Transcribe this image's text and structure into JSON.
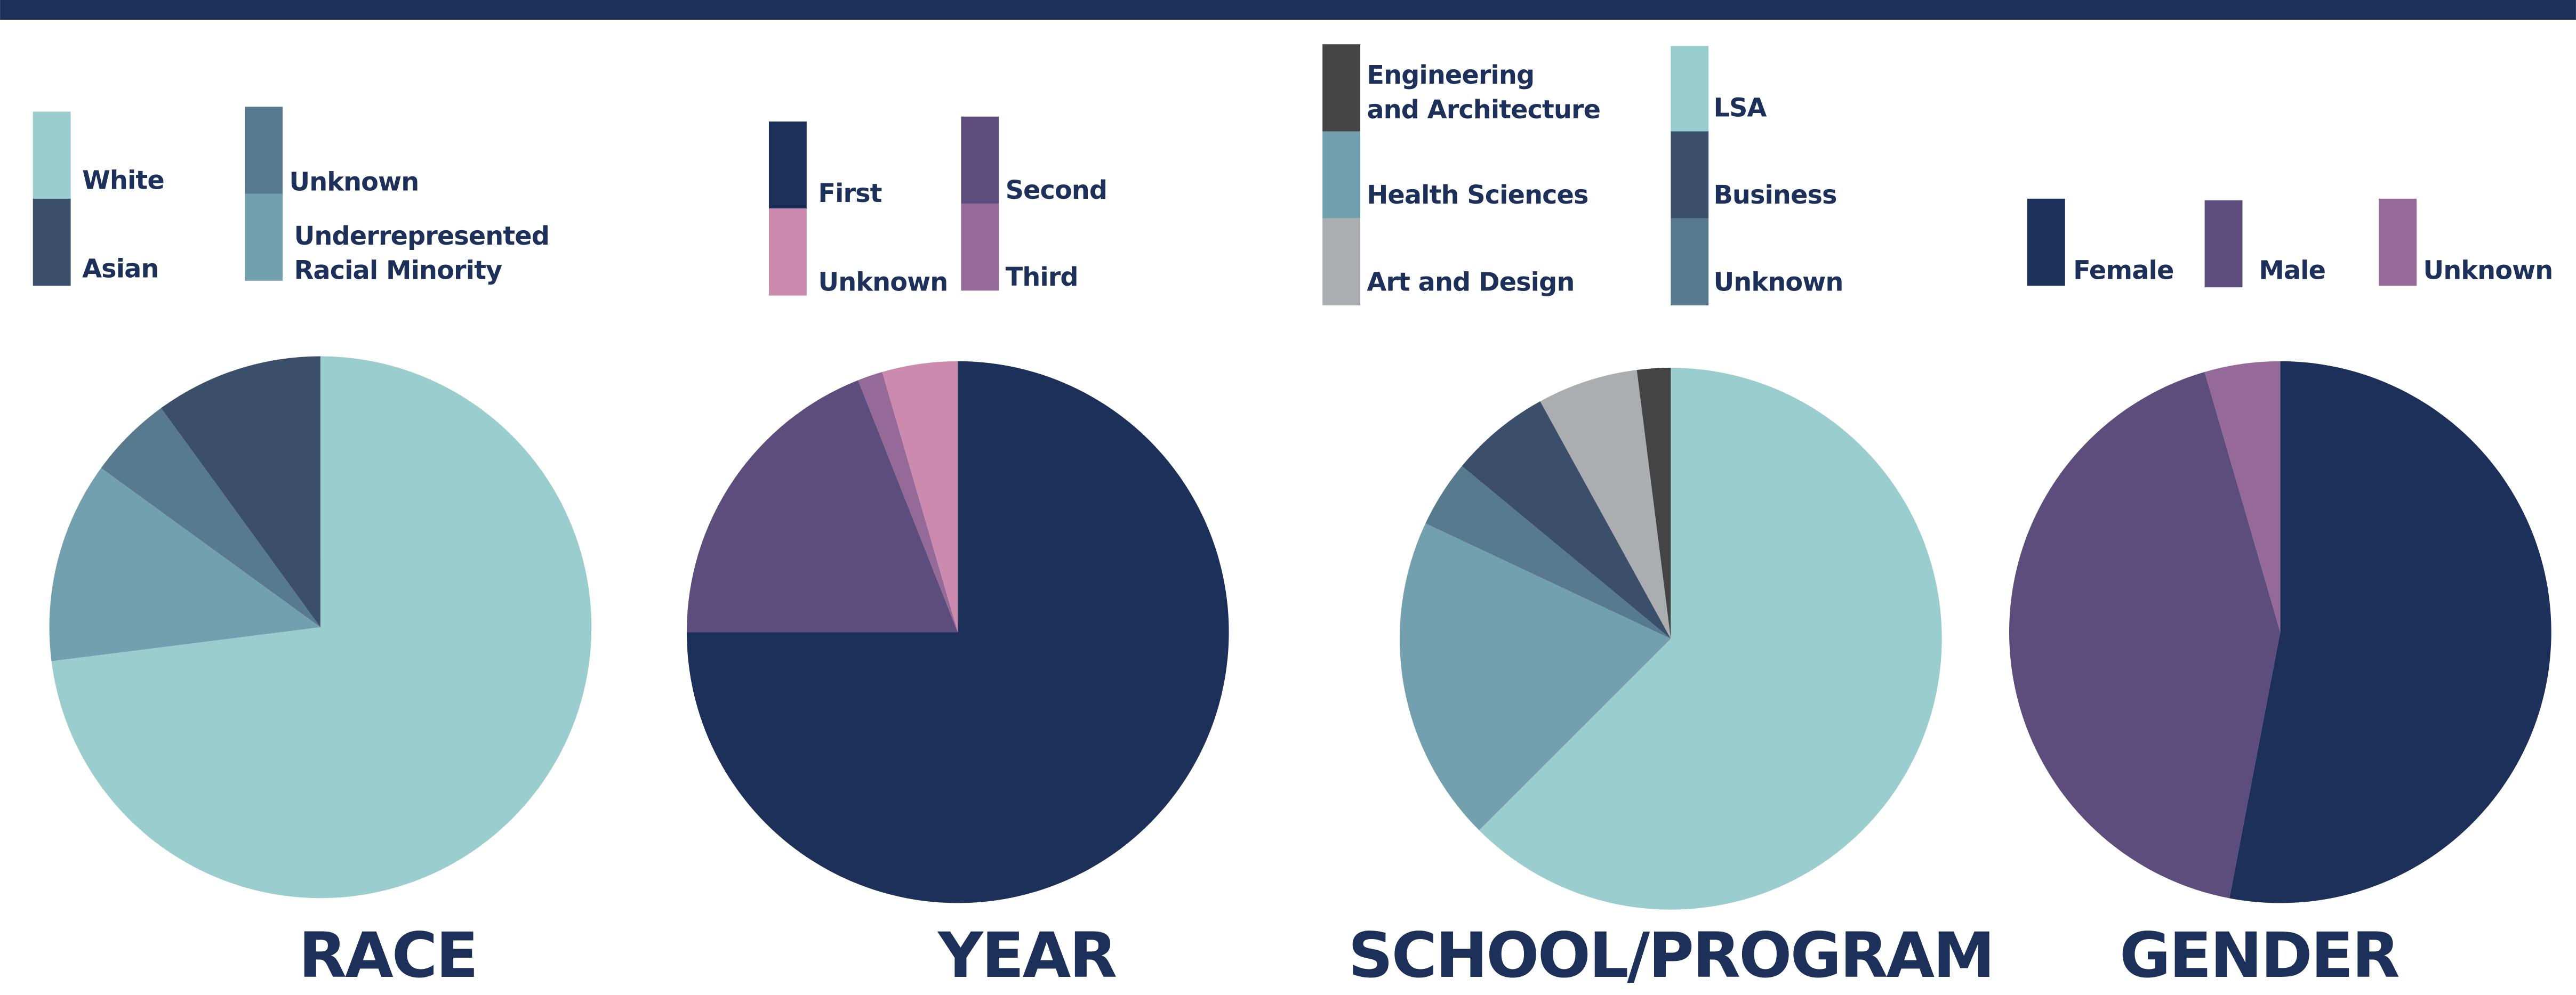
{
  "chart_data": [
    {
      "type": "pie",
      "title": "RACE",
      "categories": [
        "White",
        "Underrepresented\nRacial Minority",
        "Unknown",
        "Asian"
      ],
      "values": [
        73,
        12,
        5,
        10
      ],
      "colors": [
        "#99cdce",
        "#73a0ae",
        "#587a8e",
        "#3b4f6b"
      ]
    },
    {
      "type": "pie",
      "title": "YEAR",
      "categories": [
        "First",
        "Second",
        "Third",
        "Unknown"
      ],
      "values": [
        75,
        19,
        1.5,
        4.5
      ],
      "colors": [
        "#1c3059",
        "#5c4d7d",
        "#956a99",
        "#cc8aaf"
      ]
    },
    {
      "type": "pie",
      "title": "SCHOOL/PROGRAM",
      "categories": [
        "LSA",
        "Health Sciences",
        "Unknown",
        "Business",
        "Art and Design",
        "Engineering\nand Architecture"
      ],
      "values": [
        62.5,
        19.5,
        4,
        6,
        6,
        2
      ],
      "colors": [
        "#99cdce",
        "#73a0ae",
        "#587a8e",
        "#3b4f6b",
        "#abadb0",
        "#444444"
      ]
    },
    {
      "type": "pie",
      "title": "GENDER",
      "categories": [
        "Female",
        "Male",
        "Unknown"
      ],
      "values": [
        53,
        42.5,
        4.5
      ],
      "colors": [
        "#1c3059",
        "#5c4d7d",
        "#956a99"
      ]
    }
  ]
}
